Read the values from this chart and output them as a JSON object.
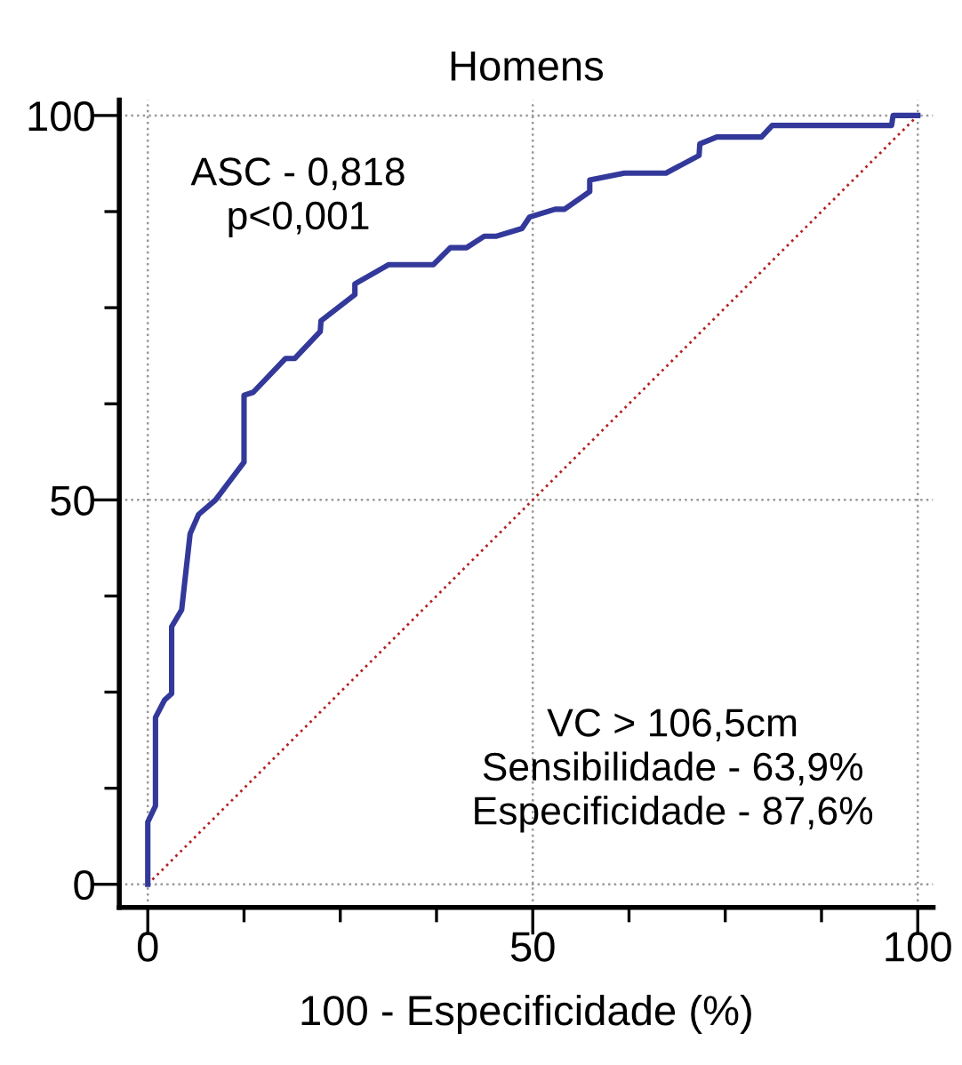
{
  "chart_data": {
    "type": "line",
    "title": "Homens",
    "xlabel": "100 - Especificidade (%)",
    "xlim": [
      -3.7,
      102
    ],
    "ylim": [
      -3,
      102
    ],
    "xticks": [
      0,
      {
        "value": 12.5,
        "label": null
      },
      {
        "value": 25,
        "label": null
      },
      {
        "value": 37.5,
        "label": null
      },
      50,
      {
        "value": 62.5,
        "label": null
      },
      {
        "value": 75,
        "label": null
      },
      {
        "value": 87.5,
        "label": null
      },
      100
    ],
    "yticks": [
      0,
      {
        "value": 12.5,
        "label": null
      },
      {
        "value": 25,
        "label": null
      },
      {
        "value": 37.5,
        "label": null
      },
      50,
      {
        "value": 62.5,
        "label": null
      },
      {
        "value": 75,
        "label": null
      },
      {
        "value": 87.5,
        "label": null
      },
      100
    ],
    "grid": true,
    "marker": "none",
    "series": [
      {
        "color": "#33399a",
        "line_style": "solid",
        "x": [
          0,
          0,
          1.0,
          1.0,
          2.2,
          3.1,
          3.1,
          4.4,
          4.7,
          5.5,
          6.6,
          8.8,
          12.5,
          12.5,
          13.7,
          17.9,
          19.1,
          22.4,
          22.5,
          26.9,
          26.9,
          31.3,
          37.1,
          39.3,
          41.4,
          43.7,
          45.3,
          48.6,
          49.6,
          52.9,
          54.1,
          57.4,
          57.4,
          61.9,
          67.3,
          71.6,
          71.7,
          73.9,
          79.7,
          81.1,
          96.6,
          96.8,
          100
        ],
        "values": [
          0,
          8.1,
          10.2,
          21.7,
          24.0,
          24.8,
          33.5,
          35.7,
          38.4,
          45.6,
          48.1,
          50,
          54.9,
          63.6,
          64.0,
          68.4,
          68.4,
          71.9,
          73.3,
          76.7,
          78.1,
          80.6,
          80.6,
          82.8,
          82.8,
          84.3,
          84.3,
          85.3,
          86.8,
          87.8,
          87.8,
          90.1,
          91.6,
          92.5,
          92.5,
          94.8,
          96.3,
          97.2,
          97.2,
          98.7,
          98.7,
          100,
          100
        ]
      },
      {
        "color": "#b22222",
        "line_style": "dotted",
        "x": [
          0,
          100
        ],
        "values": [
          0,
          100
        ]
      }
    ],
    "annotations": [
      "ASC - 0,818\np<0,001",
      "VC > 106,5cm\nSensibilidade - 63,9%\nEspecificidade - 87,6%"
    ]
  }
}
